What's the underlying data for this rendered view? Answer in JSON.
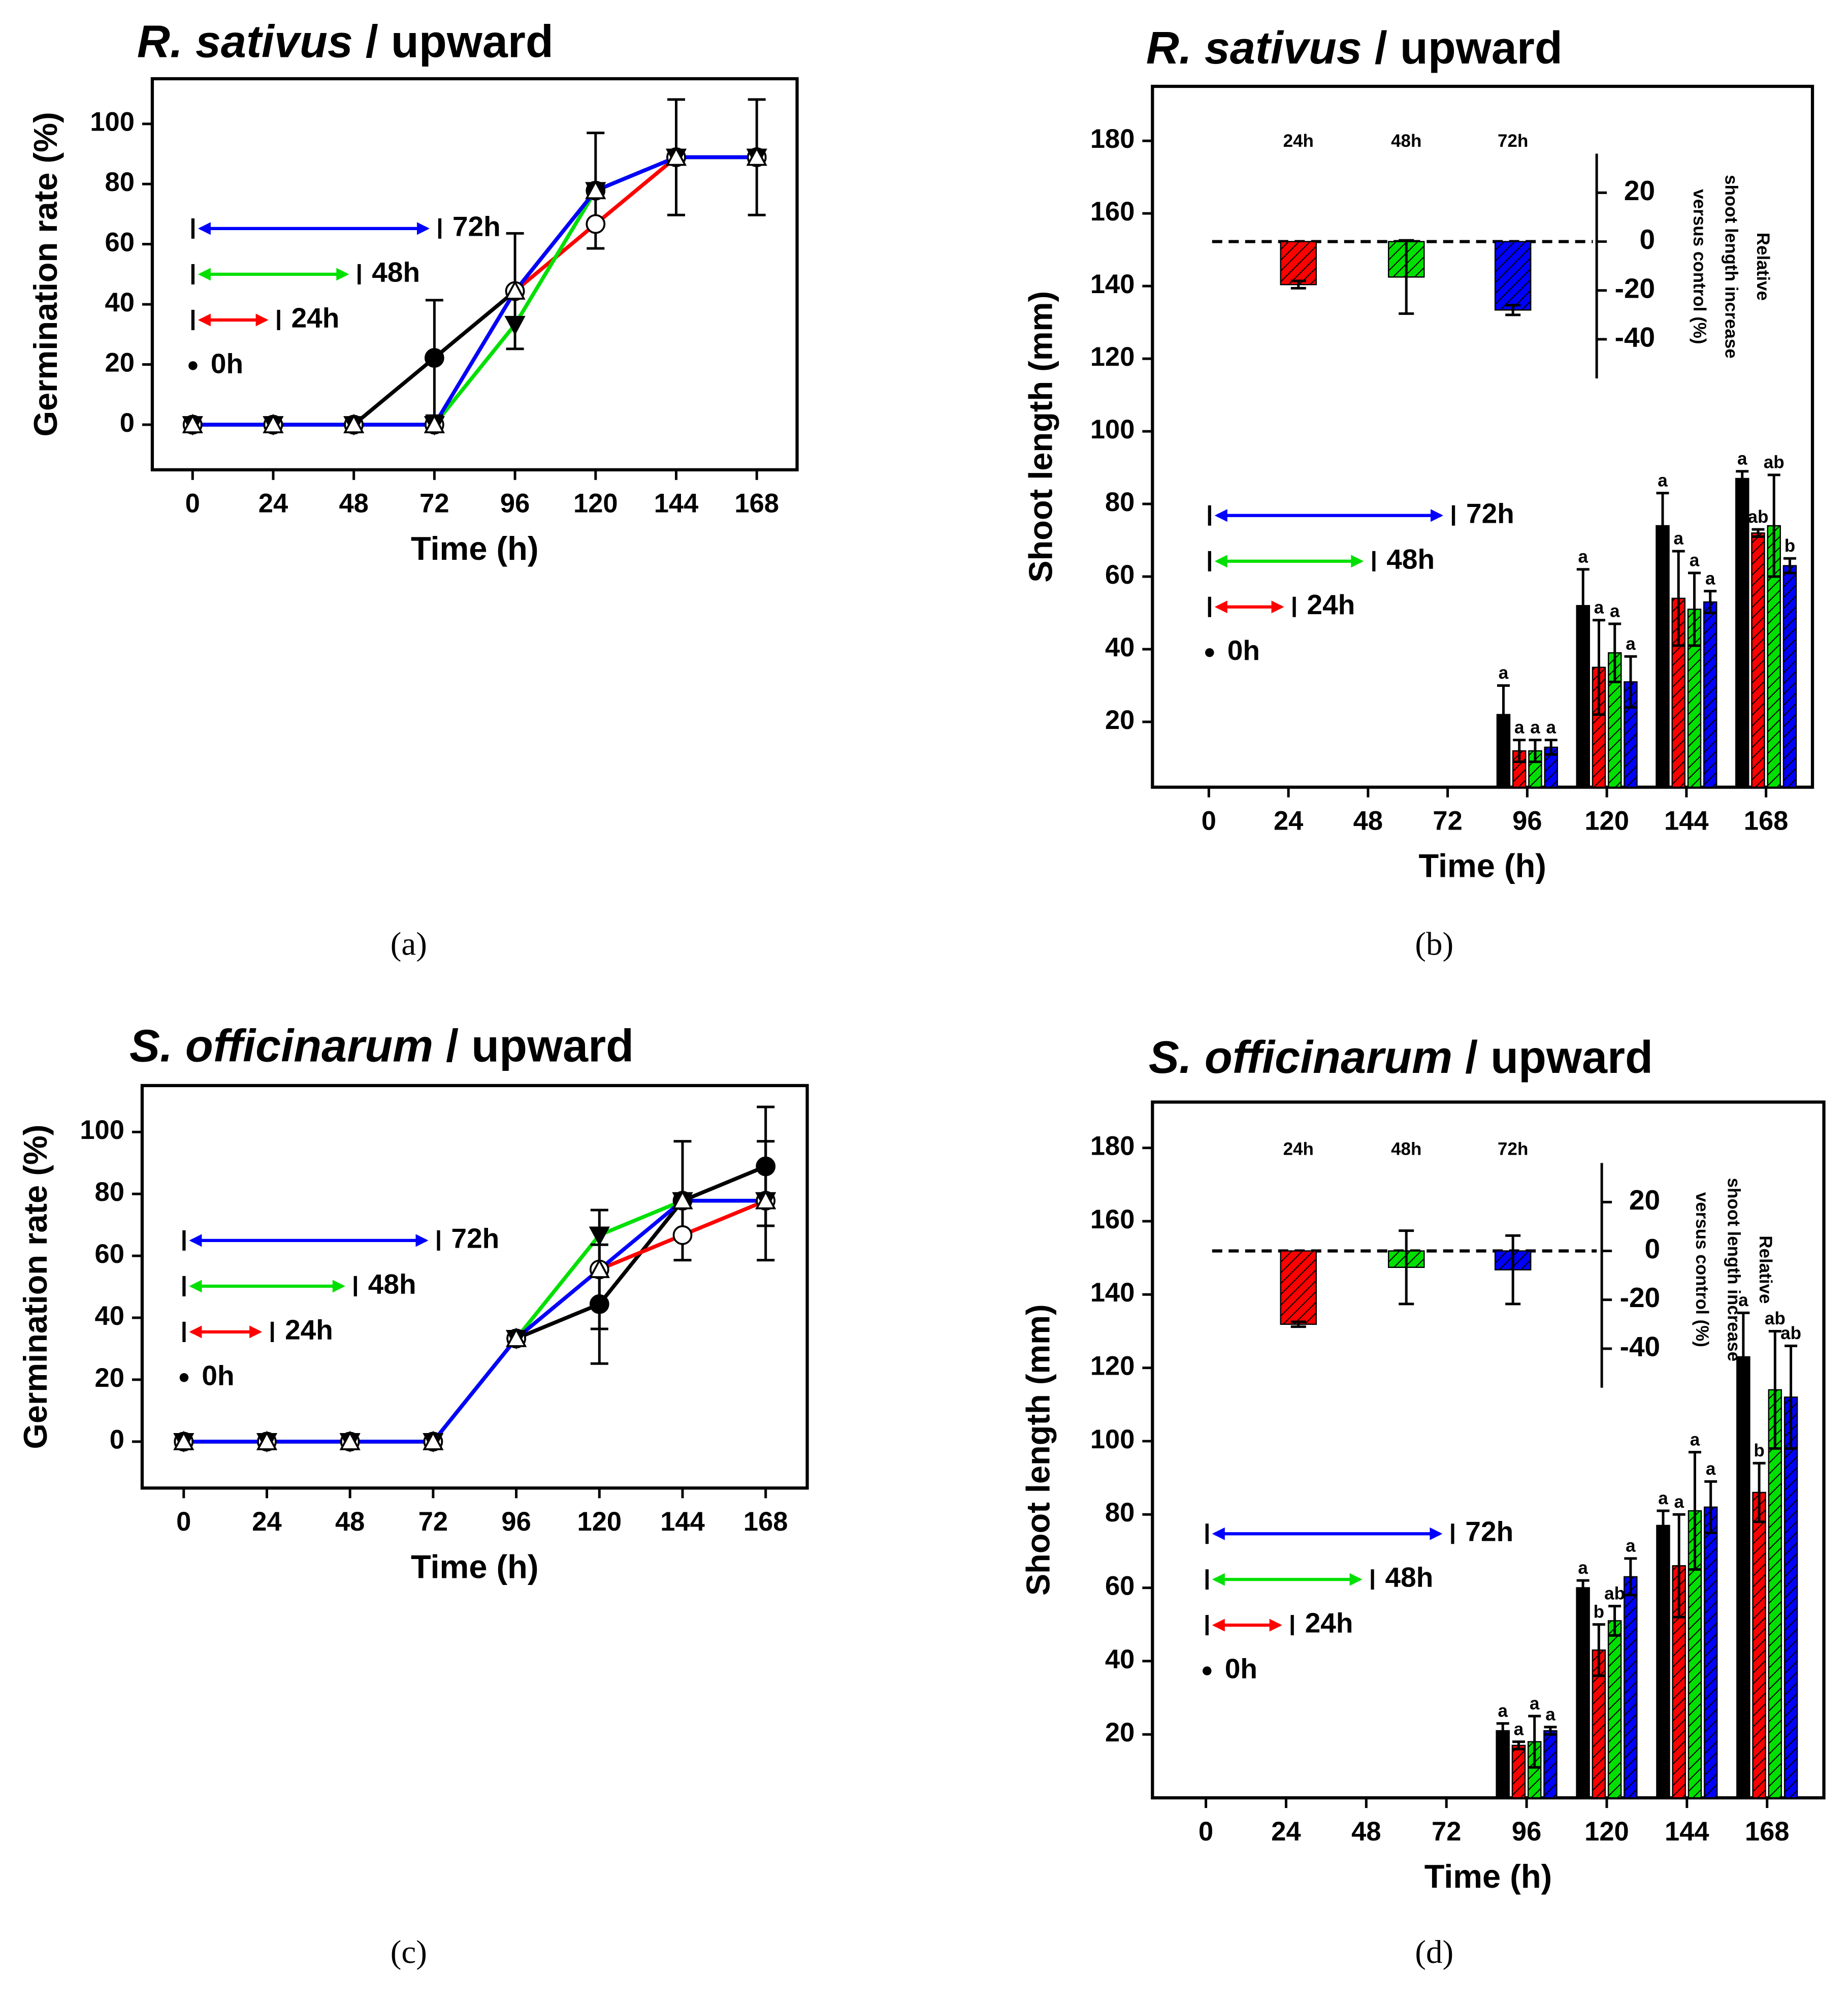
{
  "chart_data": [
    {
      "type": "line",
      "title": [
        "R. sativus",
        "/ upward"
      ],
      "panel_label": "(a)",
      "xlabel": "Time (h)",
      "ylabel": "Germination rate (%)",
      "x": [
        0,
        24,
        48,
        72,
        96,
        120,
        144,
        168
      ],
      "xlim": [
        -12,
        180
      ],
      "ylim": [
        -15,
        115
      ],
      "xticks": [
        0,
        24,
        48,
        72,
        96,
        120,
        144,
        168
      ],
      "yticks": [
        0,
        20,
        40,
        60,
        80,
        100
      ],
      "series": [
        {
          "name": "0h",
          "color": "#000000",
          "marker": "circle",
          "values": [
            0,
            0,
            0,
            22.2,
            44.4,
            77.8,
            88.9,
            88.9
          ],
          "errors": [
            null,
            null,
            null,
            19.2,
            19.2,
            19.2,
            19.2,
            19.2
          ]
        },
        {
          "name": "24h",
          "color": "#ff0000",
          "marker": "open-circle",
          "values": [
            0,
            0,
            0,
            0,
            44.4,
            66.7,
            88.9,
            88.9
          ]
        },
        {
          "name": "48h",
          "color": "#00e000",
          "marker": "triangle-down",
          "values": [
            0,
            0,
            0,
            0,
            33.3,
            77.8,
            88.9,
            88.9
          ]
        },
        {
          "name": "72h",
          "color": "#0000ff",
          "marker": "open-triangle",
          "values": [
            0,
            0,
            0,
            0,
            44.4,
            77.8,
            88.9,
            88.9
          ]
        }
      ]
    },
    {
      "type": "bar",
      "title": [
        "R. sativus",
        "/ upward"
      ],
      "panel_label": "(b)",
      "xlabel": "Time (h)",
      "ylabel": "Shoot length (mm)",
      "x": [
        96,
        120,
        144,
        168
      ],
      "xlim": [
        -17,
        182
      ],
      "ylim": [
        2,
        195
      ],
      "xticks": [
        0,
        24,
        48,
        72,
        96,
        120,
        144,
        168
      ],
      "yticks": [
        20,
        40,
        60,
        80,
        100,
        120,
        140,
        160,
        180
      ],
      "series": [
        {
          "name": "0h",
          "color": "#000000",
          "values": [
            22,
            52,
            74,
            87
          ],
          "errors": [
            8,
            10,
            9,
            2
          ],
          "letters": [
            "a",
            "a",
            "a",
            "a"
          ]
        },
        {
          "name": "24h",
          "color": "#ff0000",
          "values": [
            12,
            35,
            54,
            72
          ],
          "errors": [
            3,
            13,
            13,
            1
          ],
          "letters": [
            "a",
            "a",
            "a",
            "ab"
          ]
        },
        {
          "name": "48h",
          "color": "#00e000",
          "values": [
            12,
            39,
            51,
            74
          ],
          "errors": [
            3,
            8,
            10,
            14
          ],
          "letters": [
            "a",
            "a",
            "a",
            "ab"
          ]
        },
        {
          "name": "72h",
          "color": "#0000ff",
          "values": [
            13,
            31,
            53,
            63
          ],
          "errors": [
            2,
            7,
            3,
            2
          ],
          "letters": [
            "a",
            "a",
            "a",
            "b"
          ]
        }
      ],
      "inset": {
        "categories": [
          "24h",
          "48h",
          "72h"
        ],
        "values": [
          -17.6,
          -14.5,
          -28
        ],
        "errors": [
          1.5,
          15,
          2
        ],
        "colors": [
          "#ff0000",
          "#00e000",
          "#0000ff"
        ],
        "y2lim": [
          -56,
          36
        ],
        "y2ticks": [
          20,
          0,
          -20,
          -40
        ],
        "y2label": [
          "Relative",
          "shoot length increase",
          "versus control (%)"
        ]
      }
    },
    {
      "type": "line",
      "title": [
        "S. officinarum",
        "/ upward"
      ],
      "panel_label": "(c)",
      "xlabel": "Time (h)",
      "ylabel": "Germination rate (%)",
      "x": [
        0,
        24,
        48,
        72,
        96,
        120,
        144,
        168
      ],
      "xlim": [
        -12,
        180
      ],
      "ylim": [
        -15,
        115
      ],
      "xticks": [
        0,
        24,
        48,
        72,
        96,
        120,
        144,
        168
      ],
      "yticks": [
        0,
        20,
        40,
        60,
        80,
        100
      ],
      "series": [
        {
          "name": "0h",
          "color": "#000000",
          "marker": "circle",
          "values": [
            0,
            0,
            0,
            0,
            33.3,
            44.4,
            77.8,
            88.9
          ],
          "errors": [
            null,
            null,
            null,
            null,
            null,
            19.2,
            19.2,
            19.2
          ]
        },
        {
          "name": "24h",
          "color": "#ff0000",
          "marker": "open-circle",
          "values": [
            0,
            0,
            0,
            0,
            33.3,
            55.6,
            66.7,
            77.8
          ],
          "errors": [
            null,
            null,
            null,
            null,
            null,
            null,
            null,
            19.2
          ]
        },
        {
          "name": "48h",
          "color": "#00e000",
          "marker": "triangle-down",
          "values": [
            0,
            0,
            0,
            0,
            33.3,
            66.7,
            77.8,
            77.8
          ]
        },
        {
          "name": "72h",
          "color": "#0000ff",
          "marker": "open-triangle",
          "values": [
            0,
            0,
            0,
            0,
            33.3,
            55.6,
            77.8,
            77.8
          ],
          "errors": [
            null,
            null,
            null,
            null,
            null,
            19.2,
            null,
            null
          ]
        }
      ]
    },
    {
      "type": "bar",
      "title": [
        "S. officinarum",
        "/ upward"
      ],
      "panel_label": "(d)",
      "xlabel": "Time (h)",
      "ylabel": "Shoot length (mm)",
      "x": [
        96,
        120,
        144,
        168
      ],
      "xlim": [
        -16,
        185
      ],
      "ylim": [
        2.7,
        192.5
      ],
      "xticks": [
        0,
        24,
        48,
        72,
        96,
        120,
        144,
        168
      ],
      "yticks": [
        20,
        40,
        60,
        80,
        100,
        120,
        140,
        160,
        180
      ],
      "series": [
        {
          "name": "0h",
          "color": "#000000",
          "values": [
            21,
            60,
            77,
            123
          ],
          "errors": [
            2,
            2,
            4,
            12
          ],
          "letters": [
            "a",
            "a",
            "a",
            "a"
          ]
        },
        {
          "name": "24h",
          "color": "#ff0000",
          "values": [
            17,
            43,
            66,
            86
          ],
          "errors": [
            1,
            7,
            14,
            8
          ],
          "letters": [
            "a",
            "b",
            "a",
            "b"
          ]
        },
        {
          "name": "48h",
          "color": "#00e000",
          "values": [
            18,
            51,
            81,
            114
          ],
          "errors": [
            7,
            4,
            16,
            16
          ],
          "letters": [
            "a",
            "ab",
            "a",
            "ab"
          ]
        },
        {
          "name": "72h",
          "color": "#0000ff",
          "values": [
            21,
            63,
            82,
            112
          ],
          "errors": [
            1,
            5,
            7,
            14
          ],
          "letters": [
            "a",
            "a",
            "a",
            "ab"
          ]
        }
      ],
      "inset": {
        "categories": [
          "24h",
          "48h",
          "72h"
        ],
        "values": [
          -30,
          -6.7,
          -7.7
        ],
        "errors": [
          1,
          15,
          14
        ],
        "colors": [
          "#ff0000",
          "#00e000",
          "#0000ff"
        ],
        "y2lim": [
          -56,
          36
        ],
        "y2ticks": [
          20,
          0,
          -20,
          -40
        ],
        "y2label": [
          "Relative",
          "shoot length increase",
          "versus control (%)"
        ]
      }
    }
  ]
}
